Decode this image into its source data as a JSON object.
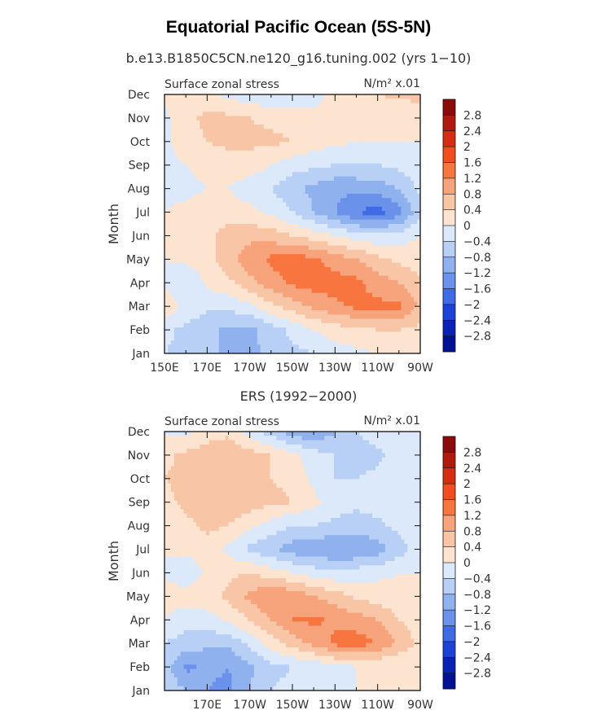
{
  "figure": {
    "title": "Equatorial Pacific Ocean (5S-5N)"
  },
  "colorbar": {
    "labels": [
      "2.8",
      "2.4",
      "2",
      "1.6",
      "1.2",
      "0.8",
      "0.4",
      "0",
      "−0.4",
      "−0.8",
      "−1.2",
      "−1.6",
      "−2",
      "−2.4",
      "−2.8"
    ],
    "colors": [
      "#8b0a0a",
      "#b01a0e",
      "#d42e12",
      "#f04e20",
      "#f8753f",
      "#f7a37b",
      "#f8c6a6",
      "#fce4d0",
      "#dbe9fa",
      "#b8d0f5",
      "#8fb2ee",
      "#6a92ea",
      "#3f6ce6",
      "#1d42d8",
      "#0a23b4",
      "#001196"
    ]
  },
  "chart_data": [
    {
      "type": "heatmap",
      "panel_title": "b.e13.B1850C5CN.ne120_g16.tuning.002 (yrs 1−10)",
      "left_label": "Surface zonal stress",
      "units_label": "N/m² x.01",
      "xlabel": "",
      "ylabel": "Month",
      "x_ticklabels": [
        "150E",
        "170E",
        "170W",
        "150W",
        "130W",
        "110W",
        "90W"
      ],
      "y_ticklabels": [
        "Jan",
        "Feb",
        "Mar",
        "Apr",
        "May",
        "Jun",
        "Jul",
        "Aug",
        "Sep",
        "Oct",
        "Nov",
        "Dec"
      ],
      "xlim": [
        150,
        270
      ],
      "months": [
        "Jan",
        "Feb",
        "Mar",
        "Apr",
        "May",
        "Jun",
        "Jul",
        "Aug",
        "Sep",
        "Oct",
        "Nov",
        "Dec"
      ],
      "lon": [
        150,
        160,
        170,
        180,
        190,
        200,
        210,
        220,
        230,
        240,
        250,
        260,
        270
      ],
      "values": [
        [
          -0.4,
          -0.5,
          -0.7,
          -0.9,
          -0.9,
          -0.7,
          -0.5,
          -0.4,
          -0.2,
          -0.1,
          0.0,
          0.0,
          0.0
        ],
        [
          -0.3,
          -0.5,
          -0.7,
          -0.9,
          -0.9,
          -0.6,
          -0.3,
          0.0,
          0.2,
          0.3,
          0.4,
          0.4,
          0.3
        ],
        [
          0.3,
          -0.1,
          -0.3,
          -0.3,
          -0.1,
          0.3,
          0.6,
          0.9,
          1.1,
          1.3,
          1.3,
          1.3,
          0.7
        ],
        [
          -0.1,
          -0.4,
          0.1,
          0.3,
          0.7,
          1.0,
          1.3,
          1.4,
          1.4,
          1.3,
          1.0,
          0.8,
          0.5
        ],
        [
          0.0,
          0.1,
          0.2,
          0.7,
          1.0,
          1.3,
          1.4,
          1.3,
          1.0,
          0.8,
          0.5,
          0.3,
          0.2
        ],
        [
          0.1,
          0.2,
          0.3,
          0.6,
          0.7,
          0.6,
          0.4,
          0.2,
          0.0,
          -0.2,
          -0.3,
          -0.2,
          0.0
        ],
        [
          0.0,
          0.1,
          0.2,
          0.2,
          0.1,
          -0.1,
          -0.4,
          -0.8,
          -1.2,
          -1.6,
          -1.8,
          -1.4,
          -0.5
        ],
        [
          -0.1,
          -0.1,
          0.0,
          0.0,
          -0.2,
          -0.4,
          -0.7,
          -0.9,
          -1.1,
          -1.1,
          -1.0,
          -0.8,
          -0.3
        ],
        [
          -0.1,
          0.0,
          0.1,
          0.2,
          0.2,
          0.0,
          -0.2,
          -0.3,
          -0.4,
          -0.4,
          -0.4,
          -0.3,
          -0.1
        ],
        [
          -0.1,
          0.2,
          0.4,
          0.5,
          0.5,
          0.5,
          0.4,
          0.2,
          0.1,
          0.0,
          0.0,
          0.0,
          0.0
        ],
        [
          -0.1,
          0.3,
          0.5,
          0.5,
          0.4,
          0.3,
          0.2,
          0.1,
          0.0,
          0.0,
          0.0,
          0.0,
          0.0
        ],
        [
          0.1,
          0.2,
          0.1,
          -0.1,
          -0.3,
          -0.3,
          -0.2,
          -0.1,
          0.1,
          0.3,
          0.4,
          0.5,
          0.6
        ]
      ]
    },
    {
      "type": "heatmap",
      "panel_title": "ERS (1992−2000)",
      "left_label": "Surface zonal stress",
      "units_label": "N/m² x.01",
      "xlabel": "",
      "ylabel": "Month",
      "x_ticklabels": [
        "170E",
        "170W",
        "150W",
        "130W",
        "110W",
        "90W"
      ],
      "y_ticklabels": [
        "Jan",
        "Feb",
        "Mar",
        "Apr",
        "May",
        "Jun",
        "Jul",
        "Aug",
        "Sep",
        "Oct",
        "Nov",
        "Dec"
      ],
      "xlim": [
        150,
        270
      ],
      "months": [
        "Jan",
        "Feb",
        "Mar",
        "Apr",
        "May",
        "Jun",
        "Jul",
        "Aug",
        "Sep",
        "Oct",
        "Nov",
        "Dec"
      ],
      "lon": [
        150,
        160,
        170,
        180,
        190,
        200,
        210,
        220,
        230,
        240,
        250,
        260,
        270
      ],
      "values": [
        [
          -0.5,
          -0.8,
          -1.2,
          -1.3,
          -0.8,
          -0.4,
          -0.3,
          -0.2,
          -0.1,
          0.0,
          0.0,
          0.0,
          0.0
        ],
        [
          -0.6,
          -1.3,
          -1.1,
          -1.2,
          -0.9,
          -0.5,
          -0.4,
          -0.3,
          -0.1,
          0.0,
          0.0,
          0.0,
          0.0
        ],
        [
          -0.4,
          -0.6,
          -0.7,
          -0.7,
          -0.3,
          0.2,
          0.6,
          0.9,
          1.3,
          1.4,
          1.2,
          0.7,
          0.3
        ],
        [
          0.0,
          -0.2,
          -0.2,
          0.1,
          0.4,
          0.8,
          1.2,
          1.3,
          1.1,
          1.0,
          0.8,
          0.4,
          0.2
        ],
        [
          0.1,
          0.2,
          0.3,
          0.5,
          0.9,
          1.2,
          1.1,
          0.8,
          0.6,
          0.3,
          0.2,
          0.1,
          0.0
        ],
        [
          0.0,
          -0.3,
          0.1,
          0.3,
          0.4,
          0.2,
          0.0,
          -0.2,
          -0.3,
          -0.2,
          -0.1,
          0.0,
          0.0
        ],
        [
          0.0,
          0.1,
          0.2,
          -0.1,
          -0.5,
          -0.7,
          -1.0,
          -1.1,
          -1.2,
          -1.2,
          -1.0,
          -0.6,
          -0.2
        ],
        [
          0.1,
          0.3,
          0.5,
          0.4,
          0.1,
          -0.2,
          -0.4,
          -0.4,
          -0.5,
          -0.6,
          -0.5,
          -0.3,
          -0.1
        ],
        [
          0.3,
          0.5,
          0.6,
          0.7,
          0.6,
          0.5,
          0.4,
          0.1,
          -0.2,
          -0.3,
          -0.2,
          -0.1,
          0.0
        ],
        [
          0.4,
          0.5,
          0.7,
          0.6,
          0.5,
          0.4,
          0.3,
          -0.1,
          -0.4,
          -0.4,
          -0.3,
          -0.2,
          0.0
        ],
        [
          0.3,
          0.5,
          0.6,
          0.7,
          0.6,
          0.4,
          0.1,
          -0.2,
          -0.4,
          -0.6,
          -0.5,
          -0.2,
          0.0
        ],
        [
          -0.1,
          -0.1,
          0.2,
          0.3,
          -0.2,
          -0.6,
          -1.0,
          -1.2,
          -0.8,
          -0.4,
          -0.2,
          0.0,
          0.0
        ]
      ]
    }
  ]
}
